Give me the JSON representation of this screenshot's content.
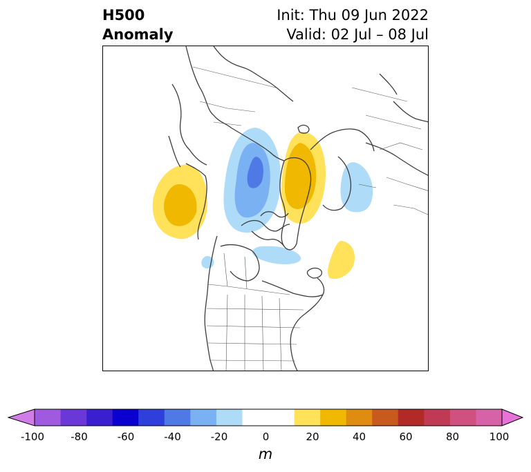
{
  "header": {
    "title_line1": "H500",
    "title_line2": "Anomaly",
    "init_text": "Init: Thu 09 Jun 2022",
    "valid_text": "Valid: 02 Jul – 08 Jul"
  },
  "colorbar": {
    "unit": "m",
    "tick_labels": [
      "-100",
      "-80",
      "-60",
      "-40",
      "-20",
      "0",
      "20",
      "40",
      "60",
      "80",
      "100"
    ],
    "tick_values": [
      -100,
      -80,
      -60,
      -40,
      -20,
      0,
      20,
      40,
      60,
      80,
      100
    ],
    "range": [
      -100,
      100
    ],
    "levels": [
      {
        "from": -100,
        "to": -90,
        "color": "#d17de8"
      },
      {
        "from": -90,
        "to": -80,
        "color": "#9f5ae0"
      },
      {
        "from": -80,
        "to": -70,
        "color": "#6b38d8"
      },
      {
        "from": -70,
        "to": -60,
        "color": "#3a1fd1"
      },
      {
        "from": -60,
        "to": -50,
        "color": "#0a00cf"
      },
      {
        "from": -50,
        "to": -40,
        "color": "#2e3fdc"
      },
      {
        "from": -40,
        "to": -30,
        "color": "#4f7ae6"
      },
      {
        "from": -30,
        "to": -20,
        "color": "#7ab1f2"
      },
      {
        "from": -20,
        "to": -10,
        "color": "#aedbf8"
      },
      {
        "from": -10,
        "to": 10,
        "color": "#ffffff"
      },
      {
        "from": 10,
        "to": 20,
        "color": "#ffe15a"
      },
      {
        "from": 20,
        "to": 30,
        "color": "#f0b800"
      },
      {
        "from": 30,
        "to": 40,
        "color": "#e08c10"
      },
      {
        "from": 40,
        "to": 50,
        "color": "#c85a1e"
      },
      {
        "from": 50,
        "to": 60,
        "color": "#b22a28"
      },
      {
        "from": 60,
        "to": 70,
        "color": "#c03a55"
      },
      {
        "from": 70,
        "to": 80,
        "color": "#d05080"
      },
      {
        "from": 80,
        "to": 90,
        "color": "#d862a8"
      },
      {
        "from": 90,
        "to": 100,
        "color": "#e872d8"
      }
    ],
    "extend": "both"
  },
  "map": {
    "projection": "north-polar-stereographic",
    "region": "North America / Arctic",
    "anomaly_features": [
      {
        "name": "positive-anomaly-northeast-pacific",
        "level": 30
      },
      {
        "name": "negative-anomaly-siberia-arctic",
        "level": -50
      },
      {
        "name": "positive-anomaly-greenland-scandinavia",
        "level": 30
      },
      {
        "name": "negative-anomaly-europe",
        "level": -20
      },
      {
        "name": "positive-anomaly-north-atlantic",
        "level": 20
      },
      {
        "name": "negative-anomaly-hudson-bay",
        "level": -20
      },
      {
        "name": "negative-anomaly-western-canada",
        "level": -20
      }
    ]
  }
}
